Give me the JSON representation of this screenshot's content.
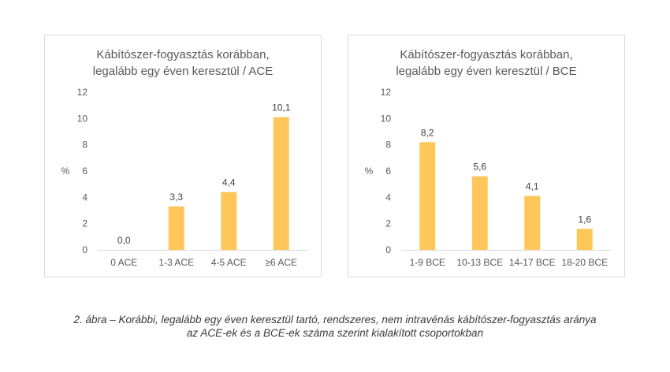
{
  "chart_data": [
    {
      "type": "bar",
      "title_lines": [
        "Kábítószer-fogyasztás korábban,",
        "legalább egy éven keresztül / ACE"
      ],
      "categories": [
        "0 ACE",
        "1-3 ACE",
        "4-5 ACE",
        "≥6 ACE"
      ],
      "values": [
        0.0,
        3.3,
        4.4,
        10.1
      ],
      "value_labels": [
        "0,0",
        "3,3",
        "4,4",
        "10,1"
      ],
      "ylabel": "%",
      "ylim": [
        0,
        12
      ],
      "yticks": [
        "0",
        "2",
        "4",
        "6",
        "8",
        "10",
        "12"
      ],
      "grid": false,
      "bar_color": "#ffc75a"
    },
    {
      "type": "bar",
      "title_lines": [
        "Kábítószer-fogyasztás korábban,",
        "legalább egy éven keresztül / BCE"
      ],
      "categories": [
        "1-9 BCE",
        "10-13 BCE",
        "14-17 BCE",
        "18-20 BCE"
      ],
      "values": [
        8.2,
        5.6,
        4.1,
        1.6
      ],
      "value_labels": [
        "8,2",
        "5,6",
        "4,1",
        "1,6"
      ],
      "ylabel": "%",
      "ylim": [
        0,
        12
      ],
      "yticks": [
        "0",
        "2",
        "4",
        "6",
        "8",
        "10",
        "12"
      ],
      "grid": false,
      "bar_color": "#ffc75a"
    }
  ],
  "caption": {
    "line1": "2. ábra – Korábbi, legalább egy éven keresztül tartó, rendszeres, nem intravénás kábítószer-fogyasztás aránya",
    "line2": "az ACE-ek és a BCE-ek száma szerint kialakított csoportokban"
  }
}
